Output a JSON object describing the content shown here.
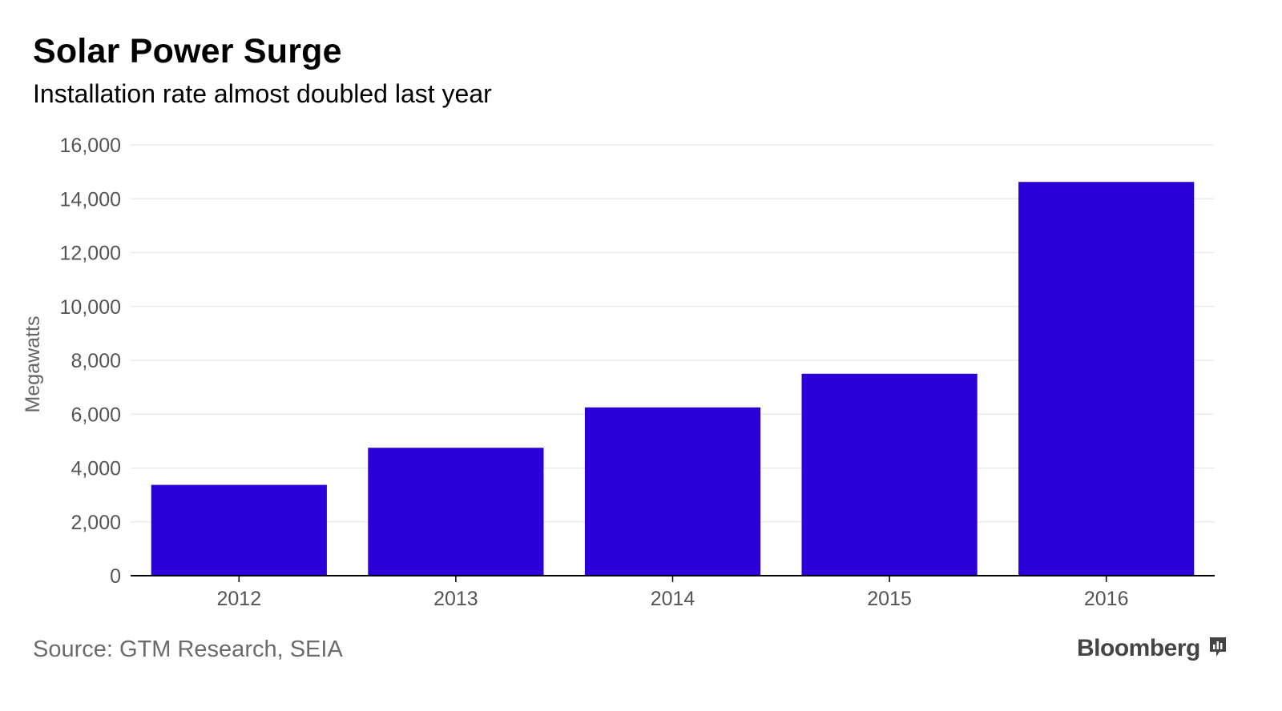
{
  "header": {
    "title": "Solar Power Surge",
    "subtitle": "Installation rate almost doubled last year"
  },
  "footer": {
    "source": "Source: GTM Research, SEIA",
    "brand": "Bloomberg",
    "brand_icon": "bloomberg-chart-icon"
  },
  "colors": {
    "bar": "#2b00d8",
    "grid": "#e6e6e6",
    "axis": "#000000"
  },
  "chart_data": {
    "type": "bar",
    "title": "Solar Power Surge",
    "subtitle": "Installation rate almost doubled last year",
    "categories": [
      "2012",
      "2013",
      "2014",
      "2015",
      "2016"
    ],
    "values": [
      3373,
      4751,
      6250,
      7500,
      14626
    ],
    "xlabel": "",
    "ylabel": "Megawatts",
    "ylim": [
      0,
      16000
    ],
    "yticks": [
      0,
      2000,
      4000,
      6000,
      8000,
      10000,
      12000,
      14000,
      16000
    ],
    "ytick_labels": [
      "0",
      "2,000",
      "4,000",
      "6,000",
      "8,000",
      "10,000",
      "12,000",
      "14,000",
      "16,000"
    ],
    "grid": true,
    "legend": "none"
  }
}
